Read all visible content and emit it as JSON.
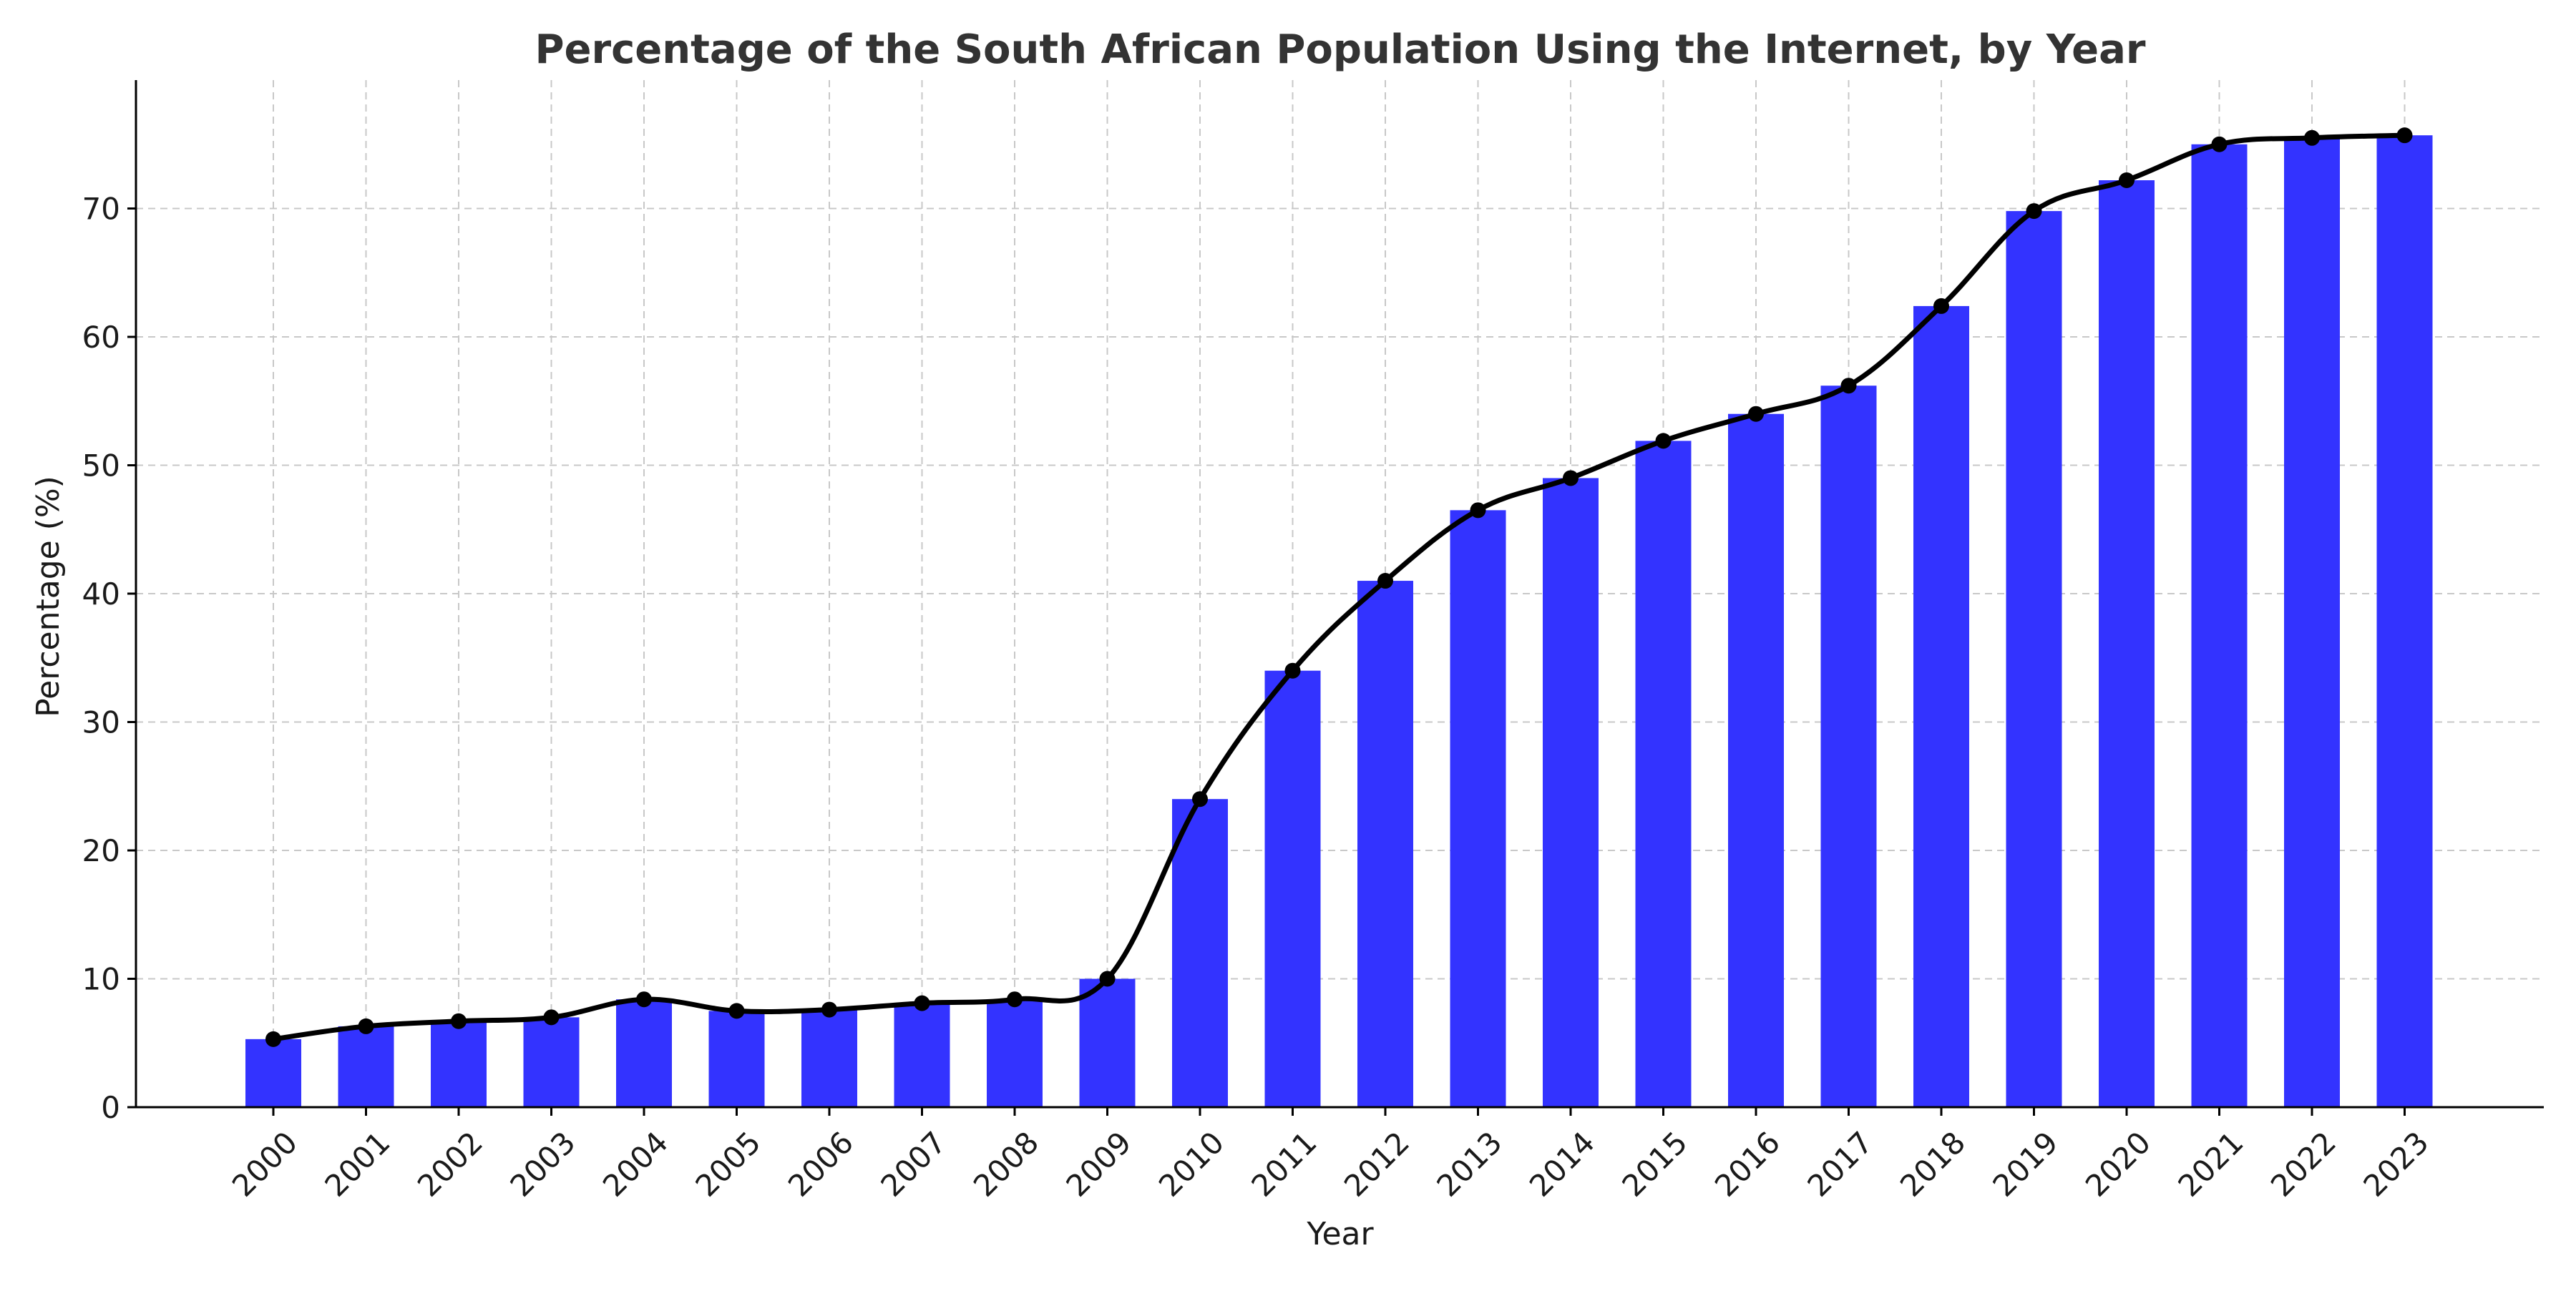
{
  "chart_data": {
    "type": "bar",
    "title": "Percentage of the South African Population Using the Internet, by Year",
    "xlabel": "Year",
    "ylabel": "Percentage (%)",
    "ylim": [
      0,
      80
    ],
    "yticks": [
      0,
      10,
      20,
      30,
      40,
      50,
      60,
      70
    ],
    "grid": true,
    "categories": [
      "2000",
      "2001",
      "2002",
      "2003",
      "2004",
      "2005",
      "2006",
      "2007",
      "2008",
      "2009",
      "2010",
      "2011",
      "2012",
      "2013",
      "2014",
      "2015",
      "2016",
      "2017",
      "2018",
      "2019",
      "2020",
      "2021",
      "2022",
      "2023"
    ],
    "series": [
      {
        "name": "Bars",
        "type": "bar",
        "color": "#3333ff",
        "values": [
          5.3,
          6.3,
          6.7,
          7.0,
          8.4,
          7.5,
          7.6,
          8.1,
          8.4,
          10.0,
          24.0,
          34.0,
          41.0,
          46.5,
          49.0,
          51.9,
          54.0,
          56.2,
          62.4,
          69.8,
          72.2,
          75.0,
          75.5,
          75.7
        ]
      },
      {
        "name": "Line",
        "type": "line",
        "color": "#000000",
        "values": [
          5.3,
          6.3,
          6.7,
          7.0,
          8.4,
          7.5,
          7.6,
          8.1,
          8.4,
          10.0,
          24.0,
          34.0,
          41.0,
          46.5,
          49.0,
          51.9,
          54.0,
          56.2,
          62.4,
          69.8,
          72.2,
          75.0,
          75.5,
          75.7
        ]
      }
    ]
  }
}
